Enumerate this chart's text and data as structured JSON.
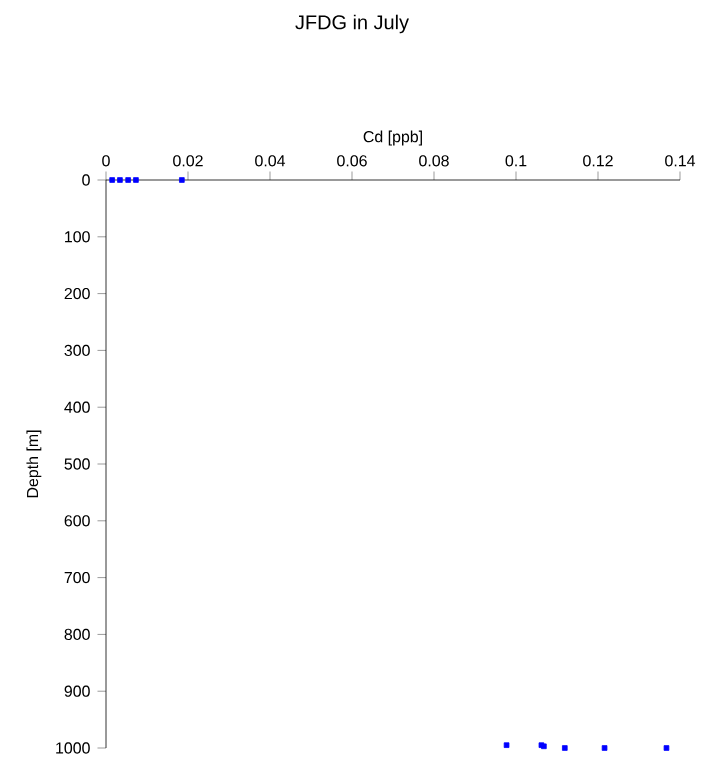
{
  "chart_data": {
    "type": "scatter",
    "title": "JFDG in July",
    "xlabel": "Cd [ppb]",
    "ylabel": "Depth [m]",
    "series": [
      {
        "color": "#0000ff",
        "x": [
          0.0015,
          0.0034,
          0.0054,
          0.0073,
          0.0185,
          0.0977,
          0.1062,
          0.1068,
          0.1119,
          0.1216,
          0.1367
        ],
        "values": [
          0,
          0,
          0,
          0,
          0,
          995,
          995,
          997,
          1000,
          1000,
          1000
        ]
      }
    ],
    "xlim": [
      0,
      0.14
    ],
    "xticks": [
      0,
      0.02,
      0.04,
      0.06,
      0.08,
      0.1,
      0.12,
      0.14
    ],
    "ylim": [
      1000,
      0
    ],
    "yticks": [
      0,
      100,
      200,
      300,
      400,
      500,
      600,
      700,
      800,
      900,
      1000
    ],
    "marker": "square"
  }
}
